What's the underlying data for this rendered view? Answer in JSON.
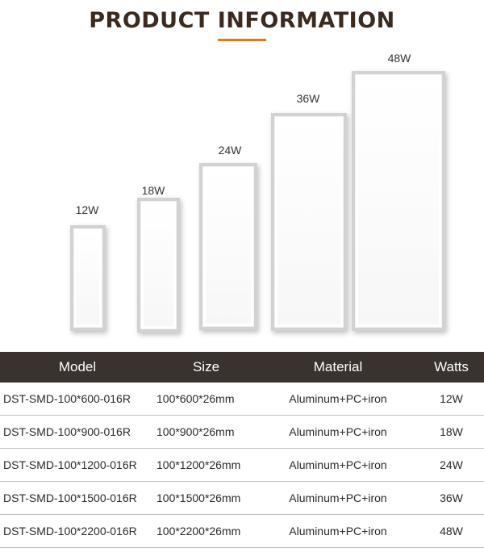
{
  "header": {
    "title": "PRODUCT INFORMATION"
  },
  "panels": [
    {
      "label": "12W"
    },
    {
      "label": "18W"
    },
    {
      "label": "24W"
    },
    {
      "label": "36W"
    },
    {
      "label": "48W"
    }
  ],
  "table": {
    "headers": [
      "Model",
      "Size",
      "Material",
      "Watts"
    ],
    "rows": [
      [
        "DST-SMD-100*600-016R",
        "100*600*26mm",
        "Aluminum+PC+iron",
        "12W"
      ],
      [
        "DST-SMD-100*900-016R",
        "100*900*26mm",
        "Aluminum+PC+iron",
        "18W"
      ],
      [
        "DST-SMD-100*1200-016R",
        "100*1200*26mm",
        "Aluminum+PC+iron",
        "24W"
      ],
      [
        "DST-SMD-100*1500-016R",
        "100*1500*26mm",
        "Aluminum+PC+iron",
        "36W"
      ],
      [
        "DST-SMD-100*2200-016R",
        "100*2200*26mm",
        "Aluminum+PC+iron",
        "48W"
      ]
    ]
  },
  "colors": {
    "accent": "#e8781e",
    "header_bg": "#3a322e",
    "title": "#3b2a20"
  }
}
